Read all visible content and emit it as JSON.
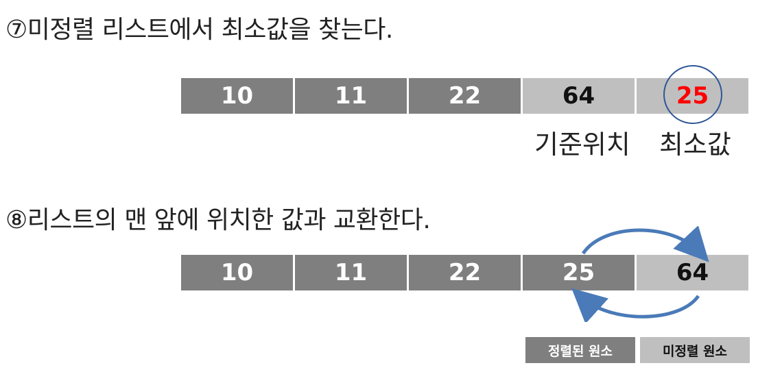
{
  "step7": {
    "title": "⑦미정렬 리스트에서 최소값을 찾는다.",
    "cells": [
      "10",
      "11",
      "22",
      "64",
      "25"
    ],
    "pivot_label": "기준위치",
    "min_label": "최소값"
  },
  "step8": {
    "title": "⑧리스트의 맨 앞에 위치한 값과 교환한다.",
    "cells": [
      "10",
      "11",
      "22",
      "25",
      "64"
    ]
  },
  "legend": {
    "sorted": "정렬된 원소",
    "unsorted": "미정렬 원소"
  },
  "colors": {
    "sorted": "#7f7f7f",
    "unsorted": "#bfbfbf",
    "min_value": "#ff0000",
    "circle": "#2e5597",
    "arrow": "#4a7ab8"
  }
}
